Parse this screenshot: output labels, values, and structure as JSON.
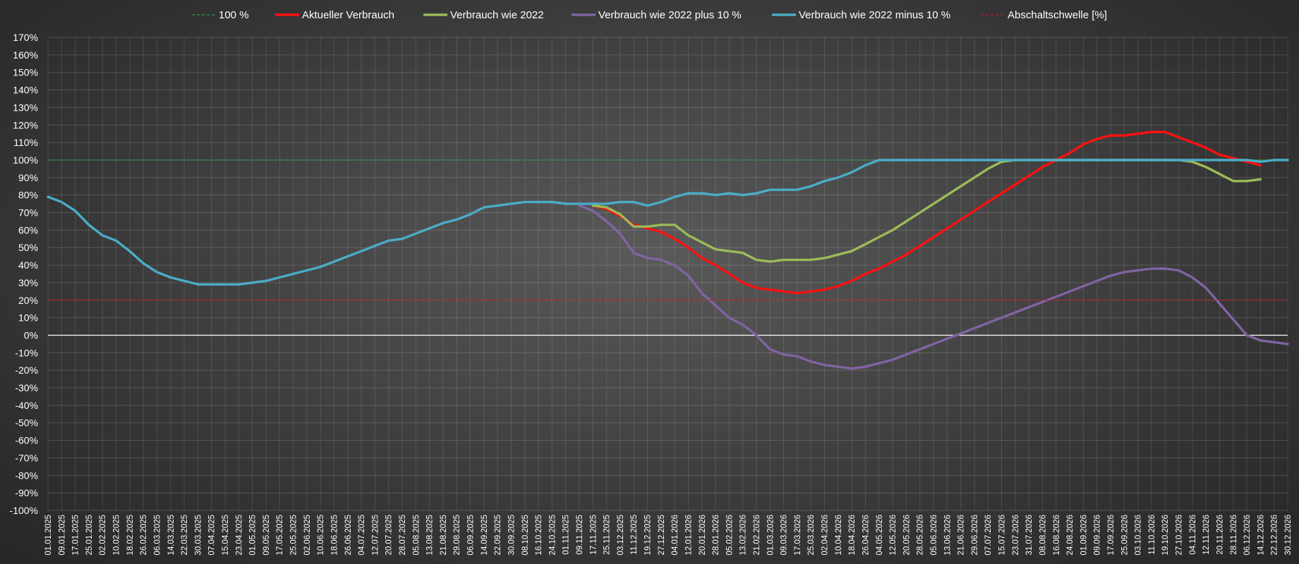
{
  "chart_data": {
    "type": "line",
    "title": "",
    "xlabel": "",
    "ylabel": "",
    "ylim": [
      -100,
      170
    ],
    "y_ticks": [
      "170%",
      "160%",
      "150%",
      "140%",
      "130%",
      "120%",
      "110%",
      "100%",
      "90%",
      "80%",
      "70%",
      "60%",
      "50%",
      "40%",
      "30%",
      "20%",
      "10%",
      "0%",
      "-10%",
      "-20%",
      "-30%",
      "-40%",
      "-50%",
      "-60%",
      "-70%",
      "-80%",
      "-90%",
      "-100%"
    ],
    "grid": true,
    "legend_position": "top",
    "x_start": "2025-01-01",
    "x_step_days": 8,
    "x_end": "2026-12-30",
    "x": [
      "01.01.2025",
      "09.01.2025",
      "17.01.2025",
      "25.01.2025",
      "02.02.2025",
      "10.02.2025",
      "18.02.2025",
      "26.02.2025",
      "06.03.2025",
      "14.03.2025",
      "22.03.2025",
      "30.03.2025",
      "07.04.2025",
      "15.04.2025",
      "23.04.2025",
      "01.05.2025",
      "09.05.2025",
      "17.05.2025",
      "25.05.2025",
      "02.06.2025",
      "10.06.2025",
      "18.06.2025",
      "26.06.2025",
      "04.07.2025",
      "12.07.2025",
      "20.07.2025",
      "28.07.2025",
      "05.08.2025",
      "13.08.2025",
      "21.08.2025",
      "29.08.2025",
      "06.09.2025",
      "14.09.2025",
      "22.09.2025",
      "30.09.2025",
      "08.10.2025",
      "16.10.2025",
      "24.10.2025",
      "01.11.2025",
      "09.11.2025",
      "17.11.2025",
      "25.11.2025",
      "03.12.2025",
      "11.12.2025",
      "19.12.2025",
      "27.12.2025",
      "04.01.2026",
      "12.01.2026",
      "20.01.2026",
      "28.01.2026",
      "05.02.2026",
      "13.02.2026",
      "21.02.2026",
      "01.03.2026",
      "09.03.2026",
      "17.03.2026",
      "25.03.2026",
      "02.04.2026",
      "10.04.2026",
      "18.04.2026",
      "26.04.2026",
      "04.05.2026",
      "12.05.2026",
      "20.05.2026",
      "28.05.2026",
      "05.06.2026",
      "13.06.2026",
      "21.06.2026",
      "29.06.2026",
      "07.07.2026",
      "15.07.2026",
      "23.07.2026",
      "31.07.2026",
      "08.08.2026",
      "16.08.2026",
      "24.08.2026",
      "01.09.2026",
      "09.09.2026",
      "17.09.2026",
      "25.09.2026",
      "03.10.2026",
      "11.10.2026",
      "19.10.2026",
      "27.10.2026",
      "04.11.2026",
      "12.11.2026",
      "20.11.2026",
      "28.11.2026",
      "06.12.2026",
      "14.12.2026",
      "22.12.2026",
      "30.12.2026"
    ],
    "series": [
      {
        "name": "100 %",
        "color": "#2e9a4e",
        "style": "dashed",
        "points": [
          [
            "01.01.2025",
            100
          ],
          [
            "30.12.2026",
            100
          ]
        ]
      },
      {
        "name": "Aktueller Verbrauch",
        "color": "#ff1010",
        "style": "solid",
        "points": [
          [
            "17.11.2025",
            74
          ],
          [
            "25.11.2025",
            72
          ],
          [
            "03.12.2025",
            68
          ],
          [
            "11.12.2025",
            63
          ],
          [
            "19.12.2025",
            61
          ],
          [
            "27.12.2025",
            59
          ],
          [
            "04.01.2026",
            55
          ],
          [
            "12.01.2026",
            50
          ],
          [
            "20.01.2026",
            44
          ],
          [
            "28.01.2026",
            40
          ],
          [
            "05.02.2026",
            35
          ],
          [
            "13.02.2026",
            30
          ],
          [
            "21.02.2026",
            27
          ],
          [
            "01.03.2026",
            26
          ],
          [
            "09.03.2026",
            25
          ],
          [
            "17.03.2026",
            24
          ],
          [
            "25.03.2026",
            25
          ],
          [
            "02.04.2026",
            26
          ],
          [
            "10.04.2026",
            28
          ],
          [
            "18.04.2026",
            31
          ],
          [
            "26.04.2026",
            35
          ],
          [
            "04.05.2026",
            38
          ],
          [
            "12.05.2026",
            42
          ],
          [
            "20.05.2026",
            46
          ],
          [
            "28.05.2026",
            51
          ],
          [
            "05.06.2026",
            56
          ],
          [
            "13.06.2026",
            61
          ],
          [
            "21.06.2026",
            66
          ],
          [
            "29.06.2026",
            71
          ],
          [
            "07.07.2026",
            76
          ],
          [
            "15.07.2026",
            81
          ],
          [
            "23.07.2026",
            86
          ],
          [
            "31.07.2026",
            91
          ],
          [
            "08.08.2026",
            96
          ],
          [
            "16.08.2026",
            100
          ],
          [
            "24.08.2026",
            104
          ],
          [
            "01.09.2026",
            109
          ],
          [
            "09.09.2026",
            112
          ],
          [
            "17.09.2026",
            114
          ],
          [
            "25.09.2026",
            114
          ],
          [
            "03.10.2026",
            115
          ],
          [
            "11.10.2026",
            116
          ],
          [
            "19.10.2026",
            116
          ],
          [
            "27.10.2026",
            113
          ],
          [
            "04.11.2026",
            110
          ],
          [
            "12.11.2026",
            107
          ],
          [
            "20.11.2026",
            103
          ],
          [
            "28.11.2026",
            101
          ],
          [
            "06.12.2026",
            99
          ],
          [
            "14.12.2026",
            97
          ]
        ]
      },
      {
        "name": "Verbrauch wie 2022",
        "color": "#9bbb59",
        "style": "solid",
        "points": [
          [
            "17.11.2025",
            74
          ],
          [
            "25.11.2025",
            73
          ],
          [
            "03.12.2025",
            69
          ],
          [
            "11.12.2025",
            62
          ],
          [
            "19.12.2025",
            62
          ],
          [
            "27.12.2025",
            63
          ],
          [
            "04.01.2026",
            63
          ],
          [
            "12.01.2026",
            57
          ],
          [
            "20.01.2026",
            53
          ],
          [
            "28.01.2026",
            49
          ],
          [
            "05.02.2026",
            48
          ],
          [
            "13.02.2026",
            47
          ],
          [
            "21.02.2026",
            43
          ],
          [
            "01.03.2026",
            42
          ],
          [
            "09.03.2026",
            43
          ],
          [
            "17.03.2026",
            43
          ],
          [
            "25.03.2026",
            43
          ],
          [
            "02.04.2026",
            44
          ],
          [
            "10.04.2026",
            46
          ],
          [
            "18.04.2026",
            48
          ],
          [
            "26.04.2026",
            52
          ],
          [
            "04.05.2026",
            56
          ],
          [
            "12.05.2026",
            60
          ],
          [
            "20.05.2026",
            65
          ],
          [
            "28.05.2026",
            70
          ],
          [
            "05.06.2026",
            75
          ],
          [
            "13.06.2026",
            80
          ],
          [
            "21.06.2026",
            85
          ],
          [
            "29.06.2026",
            90
          ],
          [
            "07.07.2026",
            95
          ],
          [
            "15.07.2026",
            99
          ],
          [
            "23.07.2026",
            100
          ],
          [
            "31.07.2026",
            100
          ],
          [
            "08.08.2026",
            100
          ],
          [
            "16.08.2026",
            100
          ],
          [
            "24.08.2026",
            100
          ],
          [
            "01.09.2026",
            100
          ],
          [
            "09.09.2026",
            100
          ],
          [
            "17.09.2026",
            100
          ],
          [
            "25.09.2026",
            100
          ],
          [
            "03.10.2026",
            100
          ],
          [
            "11.10.2026",
            100
          ],
          [
            "19.10.2026",
            100
          ],
          [
            "27.10.2026",
            100
          ],
          [
            "04.11.2026",
            99
          ],
          [
            "12.11.2026",
            96
          ],
          [
            "20.11.2026",
            92
          ],
          [
            "28.11.2026",
            88
          ],
          [
            "06.12.2026",
            88
          ],
          [
            "14.12.2026",
            89
          ]
        ]
      },
      {
        "name": "Verbrauch wie 2022 plus 10 %",
        "color": "#8064a2",
        "style": "solid",
        "points": [
          [
            "09.11.2025",
            74
          ],
          [
            "17.11.2025",
            71
          ],
          [
            "25.11.2025",
            65
          ],
          [
            "03.12.2025",
            58
          ],
          [
            "11.12.2025",
            47
          ],
          [
            "19.12.2025",
            44
          ],
          [
            "27.12.2025",
            43
          ],
          [
            "04.01.2026",
            40
          ],
          [
            "12.01.2026",
            34
          ],
          [
            "20.01.2026",
            24
          ],
          [
            "28.01.2026",
            17
          ],
          [
            "05.02.2026",
            10
          ],
          [
            "13.02.2026",
            6
          ],
          [
            "21.02.2026",
            0
          ],
          [
            "01.03.2026",
            -8
          ],
          [
            "09.03.2026",
            -11
          ],
          [
            "17.03.2026",
            -12
          ],
          [
            "25.03.2026",
            -15
          ],
          [
            "02.04.2026",
            -17
          ],
          [
            "10.04.2026",
            -18
          ],
          [
            "18.04.2026",
            -19
          ],
          [
            "26.04.2026",
            -18
          ],
          [
            "04.05.2026",
            -16
          ],
          [
            "12.05.2026",
            -14
          ],
          [
            "20.05.2026",
            -11
          ],
          [
            "28.05.2026",
            -8
          ],
          [
            "05.06.2026",
            -5
          ],
          [
            "13.06.2026",
            -2
          ],
          [
            "21.06.2026",
            1
          ],
          [
            "29.06.2026",
            4
          ],
          [
            "07.07.2026",
            7
          ],
          [
            "15.07.2026",
            10
          ],
          [
            "23.07.2026",
            13
          ],
          [
            "31.07.2026",
            16
          ],
          [
            "08.08.2026",
            19
          ],
          [
            "16.08.2026",
            22
          ],
          [
            "24.08.2026",
            25
          ],
          [
            "01.09.2026",
            28
          ],
          [
            "09.09.2026",
            31
          ],
          [
            "17.09.2026",
            34
          ],
          [
            "25.09.2026",
            36
          ],
          [
            "03.10.2026",
            37
          ],
          [
            "11.10.2026",
            38
          ],
          [
            "19.10.2026",
            38
          ],
          [
            "27.10.2026",
            37
          ],
          [
            "04.11.2026",
            33
          ],
          [
            "12.11.2026",
            27
          ],
          [
            "20.11.2026",
            18
          ],
          [
            "28.11.2026",
            9
          ],
          [
            "06.12.2026",
            0
          ],
          [
            "14.12.2026",
            -3
          ],
          [
            "22.12.2026",
            -4
          ],
          [
            "30.12.2026",
            -5
          ]
        ]
      },
      {
        "name": "Verbrauch wie 2022 minus 10 %",
        "color": "#4bacc6",
        "style": "solid",
        "points": [
          [
            "01.01.2025",
            79
          ],
          [
            "09.01.2025",
            76
          ],
          [
            "17.01.2025",
            71
          ],
          [
            "25.01.2025",
            63
          ],
          [
            "02.02.2025",
            57
          ],
          [
            "10.02.2025",
            54
          ],
          [
            "18.02.2025",
            48
          ],
          [
            "26.02.2025",
            41
          ],
          [
            "06.03.2025",
            36
          ],
          [
            "14.03.2025",
            33
          ],
          [
            "22.03.2025",
            31
          ],
          [
            "30.03.2025",
            29
          ],
          [
            "07.04.2025",
            29
          ],
          [
            "15.04.2025",
            29
          ],
          [
            "23.04.2025",
            29
          ],
          [
            "01.05.2025",
            30
          ],
          [
            "09.05.2025",
            31
          ],
          [
            "17.05.2025",
            33
          ],
          [
            "25.05.2025",
            35
          ],
          [
            "02.06.2025",
            37
          ],
          [
            "10.06.2025",
            39
          ],
          [
            "18.06.2025",
            42
          ],
          [
            "26.06.2025",
            45
          ],
          [
            "04.07.2025",
            48
          ],
          [
            "12.07.2025",
            51
          ],
          [
            "20.07.2025",
            54
          ],
          [
            "28.07.2025",
            55
          ],
          [
            "05.08.2025",
            58
          ],
          [
            "13.08.2025",
            61
          ],
          [
            "21.08.2025",
            64
          ],
          [
            "29.08.2025",
            66
          ],
          [
            "06.09.2025",
            69
          ],
          [
            "14.09.2025",
            73
          ],
          [
            "22.09.2025",
            74
          ],
          [
            "30.09.2025",
            75
          ],
          [
            "08.10.2025",
            76
          ],
          [
            "16.10.2025",
            76
          ],
          [
            "24.10.2025",
            76
          ],
          [
            "01.11.2025",
            75
          ],
          [
            "09.11.2025",
            75
          ],
          [
            "17.11.2025",
            75
          ],
          [
            "25.11.2025",
            75
          ],
          [
            "03.12.2025",
            76
          ],
          [
            "11.12.2025",
            76
          ],
          [
            "19.12.2025",
            74
          ],
          [
            "27.12.2025",
            76
          ],
          [
            "04.01.2026",
            79
          ],
          [
            "12.01.2026",
            81
          ],
          [
            "20.01.2026",
            81
          ],
          [
            "28.01.2026",
            80
          ],
          [
            "05.02.2026",
            81
          ],
          [
            "13.02.2026",
            80
          ],
          [
            "21.02.2026",
            81
          ],
          [
            "01.03.2026",
            83
          ],
          [
            "09.03.2026",
            83
          ],
          [
            "17.03.2026",
            83
          ],
          [
            "25.03.2026",
            85
          ],
          [
            "02.04.2026",
            88
          ],
          [
            "10.04.2026",
            90
          ],
          [
            "18.04.2026",
            93
          ],
          [
            "26.04.2026",
            97
          ],
          [
            "04.05.2026",
            100
          ],
          [
            "12.05.2026",
            100
          ],
          [
            "20.05.2026",
            100
          ],
          [
            "28.05.2026",
            100
          ],
          [
            "05.06.2026",
            100
          ],
          [
            "13.06.2026",
            100
          ],
          [
            "21.06.2026",
            100
          ],
          [
            "29.06.2026",
            100
          ],
          [
            "07.07.2026",
            100
          ],
          [
            "15.07.2026",
            100
          ],
          [
            "23.07.2026",
            100
          ],
          [
            "31.07.2026",
            100
          ],
          [
            "08.08.2026",
            100
          ],
          [
            "16.08.2026",
            100
          ],
          [
            "24.08.2026",
            100
          ],
          [
            "01.09.2026",
            100
          ],
          [
            "09.09.2026",
            100
          ],
          [
            "17.09.2026",
            100
          ],
          [
            "25.09.2026",
            100
          ],
          [
            "03.10.2026",
            100
          ],
          [
            "11.10.2026",
            100
          ],
          [
            "19.10.2026",
            100
          ],
          [
            "27.10.2026",
            100
          ],
          [
            "04.11.2026",
            100
          ],
          [
            "12.11.2026",
            100
          ],
          [
            "20.11.2026",
            100
          ],
          [
            "28.11.2026",
            100
          ],
          [
            "06.12.2026",
            100
          ],
          [
            "14.12.2026",
            99
          ],
          [
            "22.12.2026",
            100
          ],
          [
            "30.12.2026",
            100
          ]
        ]
      },
      {
        "name": "Abschaltschwelle [%]",
        "color": "#c0182a",
        "style": "dashed",
        "points": [
          [
            "01.01.2025",
            20
          ],
          [
            "30.12.2026",
            20
          ]
        ]
      }
    ]
  }
}
